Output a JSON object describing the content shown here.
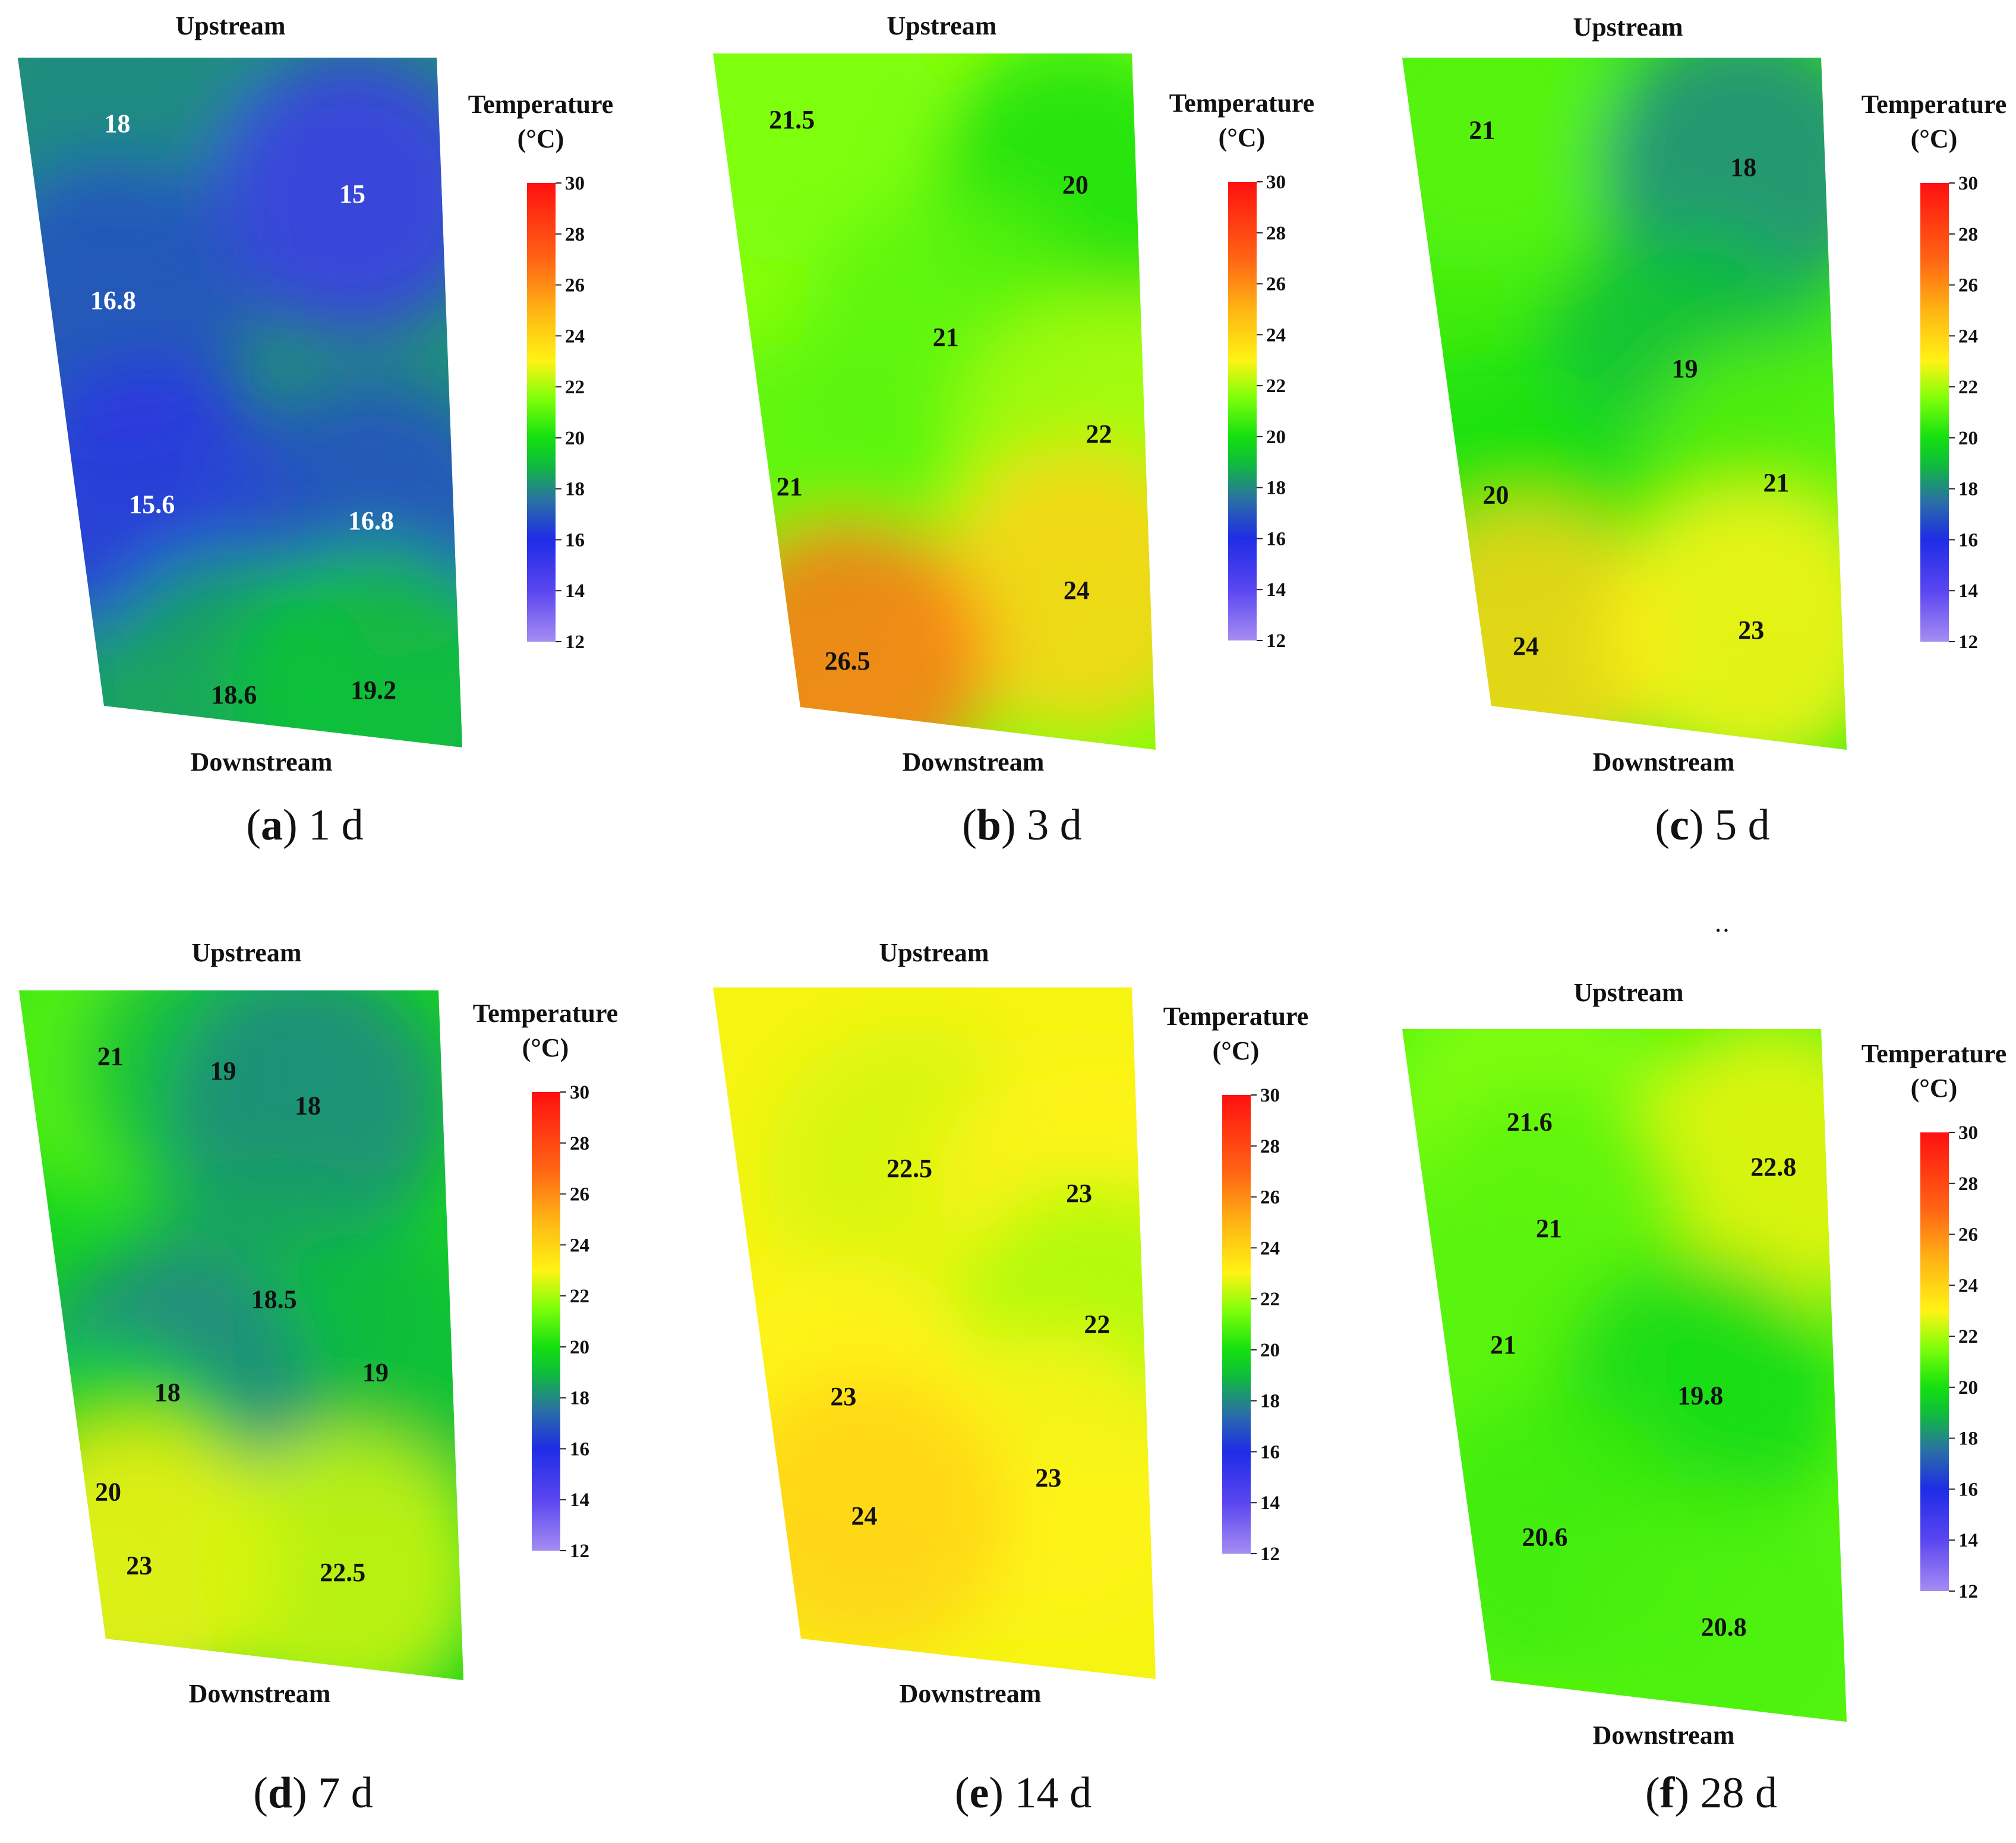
{
  "legend": {
    "title_line1": "Temperature",
    "title_line2": "(°C)",
    "ticks": [
      30,
      28,
      26,
      24,
      22,
      20,
      18,
      16,
      14,
      12
    ]
  },
  "colors": {
    "stops": [
      {
        "t": 12,
        "c": "#a68cf2"
      },
      {
        "t": 14,
        "c": "#5a46f0"
      },
      {
        "t": 16,
        "c": "#1f2ce6"
      },
      {
        "t": 17.5,
        "c": "#2a6fa6"
      },
      {
        "t": 19,
        "c": "#0fbe3a"
      },
      {
        "t": 20,
        "c": "#14e010"
      },
      {
        "t": 21.5,
        "c": "#7cff0a"
      },
      {
        "t": 23,
        "c": "#fff314"
      },
      {
        "t": 25,
        "c": "#ffb414"
      },
      {
        "t": 27,
        "c": "#ff6414"
      },
      {
        "t": 30,
        "c": "#ff1010"
      }
    ]
  },
  "stray_mark": "‥",
  "chart_data": [
    {
      "type": "heatmap",
      "caption_letter": "a",
      "caption_text": "1 d",
      "top_label": "Upstream",
      "bottom_label": "Downstream",
      "base_temp": 18.2,
      "annotations": [
        {
          "text": "18",
          "value": 18,
          "u": 0.22,
          "v": 0.1,
          "label_color": "white"
        },
        {
          "text": "15",
          "value": 15,
          "u": 0.78,
          "v": 0.2,
          "label_color": "white"
        },
        {
          "text": "16.8",
          "value": 16.8,
          "u": 0.16,
          "v": 0.37,
          "label_color": "white"
        },
        {
          "text": "15.6",
          "value": 15.6,
          "u": 0.2,
          "v": 0.68,
          "label_color": "white"
        },
        {
          "text": "16.8",
          "value": 16.8,
          "u": 0.78,
          "v": 0.68,
          "label_color": "white"
        },
        {
          "text": "18.6",
          "value": 18.6,
          "u": 0.37,
          "v": 0.96,
          "label_color": "black"
        },
        {
          "text": "19.2",
          "value": 19.2,
          "u": 0.76,
          "v": 0.93,
          "label_color": "black"
        }
      ]
    },
    {
      "type": "heatmap",
      "caption_letter": "b",
      "caption_text": "3 d",
      "top_label": "Upstream",
      "bottom_label": "Downstream",
      "base_temp": 21.6,
      "annotations": [
        {
          "text": "21.5",
          "value": 21.5,
          "u": 0.17,
          "v": 0.1,
          "label_color": "black"
        },
        {
          "text": "20",
          "value": 20,
          "u": 0.85,
          "v": 0.19,
          "label_color": "black"
        },
        {
          "text": "21",
          "value": 21,
          "u": 0.5,
          "v": 0.42,
          "label_color": "black"
        },
        {
          "text": "22",
          "value": 22,
          "u": 0.88,
          "v": 0.55,
          "label_color": "black"
        },
        {
          "text": "21",
          "value": 21,
          "u": 0.05,
          "v": 0.66,
          "label_color": "black"
        },
        {
          "text": "24",
          "value": 24,
          "u": 0.8,
          "v": 0.78,
          "label_color": "black"
        },
        {
          "text": "26.5",
          "value": 26.5,
          "u": 0.15,
          "v": 0.92,
          "label_color": "black"
        }
      ]
    },
    {
      "type": "heatmap",
      "caption_letter": "c",
      "caption_text": "5 d",
      "top_label": "Upstream",
      "bottom_label": "Downstream",
      "base_temp": 20.6,
      "annotations": [
        {
          "text": "21",
          "value": 21,
          "u": 0.17,
          "v": 0.11,
          "label_color": "black"
        },
        {
          "text": "18",
          "value": 18,
          "u": 0.8,
          "v": 0.16,
          "label_color": "black"
        },
        {
          "text": "19",
          "value": 19,
          "u": 0.62,
          "v": 0.46,
          "label_color": "black"
        },
        {
          "text": "20",
          "value": 20,
          "u": 0.09,
          "v": 0.67,
          "label_color": "black"
        },
        {
          "text": "21",
          "value": 21,
          "u": 0.84,
          "v": 0.62,
          "label_color": "black"
        },
        {
          "text": "24",
          "value": 24,
          "u": 0.12,
          "v": 0.9,
          "label_color": "black"
        },
        {
          "text": "23",
          "value": 23,
          "u": 0.75,
          "v": 0.84,
          "label_color": "black"
        }
      ]
    },
    {
      "type": "heatmap",
      "caption_letter": "d",
      "caption_text": "7 d",
      "top_label": "Upstream",
      "bottom_label": "Downstream",
      "base_temp": 19.6,
      "annotations": [
        {
          "text": "21",
          "value": 21,
          "u": 0.2,
          "v": 0.1,
          "label_color": "black"
        },
        {
          "text": "19",
          "value": 19,
          "u": 0.47,
          "v": 0.12,
          "label_color": "black"
        },
        {
          "text": "18",
          "value": 18,
          "u": 0.67,
          "v": 0.17,
          "label_color": "black"
        },
        {
          "text": "18.5",
          "value": 18.5,
          "u": 0.55,
          "v": 0.46,
          "label_color": "black"
        },
        {
          "text": "19",
          "value": 19,
          "u": 0.8,
          "v": 0.56,
          "label_color": "black"
        },
        {
          "text": "18",
          "value": 18,
          "u": 0.25,
          "v": 0.61,
          "label_color": "black"
        },
        {
          "text": "20",
          "value": 20,
          "u": 0.06,
          "v": 0.77,
          "label_color": "black"
        },
        {
          "text": "23",
          "value": 23,
          "u": 0.12,
          "v": 0.88,
          "label_color": "black"
        },
        {
          "text": "22.5",
          "value": 22.5,
          "u": 0.68,
          "v": 0.86,
          "label_color": "black"
        }
      ]
    },
    {
      "type": "heatmap",
      "caption_letter": "e",
      "caption_text": "14 d",
      "top_label": "Upstream",
      "bottom_label": "Downstream",
      "base_temp": 22.9,
      "annotations": [
        {
          "text": "22.5",
          "value": 22.5,
          "u": 0.43,
          "v": 0.27,
          "label_color": "black"
        },
        {
          "text": "23",
          "value": 23,
          "u": 0.85,
          "v": 0.3,
          "label_color": "black"
        },
        {
          "text": "22",
          "value": 22,
          "u": 0.88,
          "v": 0.49,
          "label_color": "black"
        },
        {
          "text": "23",
          "value": 23,
          "u": 0.2,
          "v": 0.62,
          "label_color": "black"
        },
        {
          "text": "23",
          "value": 23,
          "u": 0.73,
          "v": 0.72,
          "label_color": "black"
        },
        {
          "text": "24",
          "value": 24,
          "u": 0.22,
          "v": 0.8,
          "label_color": "black"
        }
      ]
    },
    {
      "type": "heatmap",
      "caption_letter": "f",
      "caption_text": "28 d",
      "top_label": "Upstream",
      "bottom_label": "Downstream",
      "base_temp": 21.0,
      "annotations": [
        {
          "text": "21.6",
          "value": 21.6,
          "u": 0.28,
          "v": 0.14,
          "label_color": "black"
        },
        {
          "text": "22.8",
          "value": 22.8,
          "u": 0.87,
          "v": 0.2,
          "label_color": "black"
        },
        {
          "text": "21",
          "value": 21,
          "u": 0.3,
          "v": 0.3,
          "label_color": "black"
        },
        {
          "text": "21",
          "value": 21,
          "u": 0.15,
          "v": 0.48,
          "label_color": "black"
        },
        {
          "text": "19.8",
          "value": 19.8,
          "u": 0.65,
          "v": 0.54,
          "label_color": "black"
        },
        {
          "text": "20.6",
          "value": 20.6,
          "u": 0.2,
          "v": 0.77,
          "label_color": "black"
        },
        {
          "text": "20.8",
          "value": 20.8,
          "u": 0.67,
          "v": 0.88,
          "label_color": "black"
        }
      ]
    }
  ]
}
